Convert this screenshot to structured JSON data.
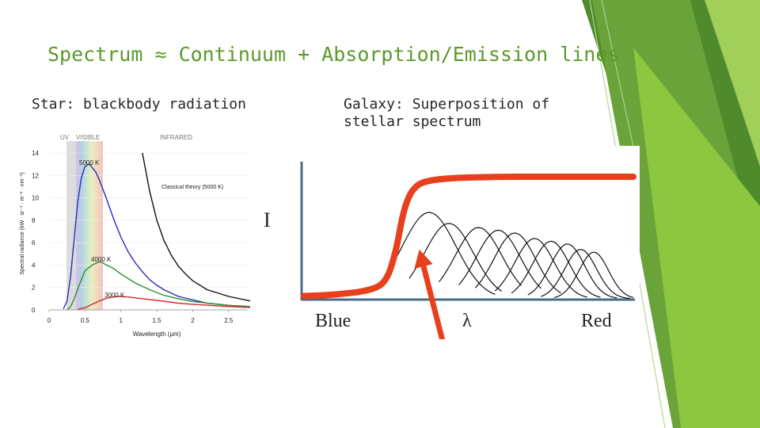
{
  "slide": {
    "title": "Spectrum ≈ Continuum + Absorption/Emission lines",
    "left_subtitle": "Star: blackbody radiation",
    "right_subtitle": "Galaxy: Superposition of stellar spectrum",
    "accent_color": "#5b9a2a",
    "decor_colors": [
      "#8dc63f",
      "#6aa33a",
      "#4f8a2b"
    ]
  },
  "chart_data": [
    {
      "type": "line",
      "title": "",
      "xlabel": "Wavelength (μm)",
      "ylabel": "Spectral radiance (kW · sr⁻¹ · m⁻² · nm⁻¹)",
      "xlim": [
        0,
        2.8
      ],
      "ylim": [
        0,
        14
      ],
      "xticks": [
        0,
        0.5,
        1,
        1.5,
        2,
        2.5
      ],
      "xtick_labels": [
        "0",
        "0.5",
        "1",
        "1.5",
        "2",
        "2.5"
      ],
      "yticks": [
        0,
        2,
        4,
        6,
        8,
        10,
        12,
        14
      ],
      "band_labels": {
        "uv": "UV",
        "visible": "VISIBLE",
        "infrared": "INFRARED"
      },
      "visible_band": [
        0.38,
        0.75
      ],
      "series": [
        {
          "name": "5000 K",
          "color": "#2b2bb8",
          "x": [
            0.2,
            0.25,
            0.3,
            0.35,
            0.4,
            0.45,
            0.5,
            0.55,
            0.58,
            0.6,
            0.65,
            0.7,
            0.8,
            0.9,
            1.0,
            1.1,
            1.2,
            1.3,
            1.4,
            1.5,
            1.6,
            1.8,
            2.0,
            2.2,
            2.5,
            2.8
          ],
          "y": [
            0.1,
            0.8,
            3.0,
            6.4,
            9.7,
            11.8,
            12.8,
            13.0,
            12.9,
            12.7,
            12.3,
            11.6,
            9.9,
            8.1,
            6.5,
            5.2,
            4.2,
            3.4,
            2.7,
            2.2,
            1.8,
            1.2,
            0.9,
            0.6,
            0.4,
            0.3
          ]
        },
        {
          "name": "4000 K",
          "color": "#2a8f2a",
          "x": [
            0.25,
            0.3,
            0.35,
            0.4,
            0.5,
            0.6,
            0.7,
            0.72,
            0.8,
            0.9,
            1.0,
            1.2,
            1.4,
            1.6,
            1.8,
            2.0,
            2.5,
            2.8
          ],
          "y": [
            0.0,
            0.3,
            1.0,
            1.9,
            3.5,
            4.0,
            4.3,
            4.3,
            4.0,
            3.7,
            3.2,
            2.4,
            1.8,
            1.3,
            1.0,
            0.75,
            0.4,
            0.3
          ]
        },
        {
          "name": "3000 K",
          "color": "#d42a2a",
          "x": [
            0.4,
            0.5,
            0.6,
            0.7,
            0.8,
            0.9,
            0.97,
            1.1,
            1.3,
            1.5,
            1.8,
            2.0,
            2.5,
            2.8
          ],
          "y": [
            0.05,
            0.2,
            0.5,
            0.8,
            1.05,
            1.15,
            1.2,
            1.15,
            1.0,
            0.85,
            0.6,
            0.5,
            0.3,
            0.22
          ]
        },
        {
          "name": "Classical theory (5000 K)",
          "color": "#111111",
          "x": [
            1.3,
            1.4,
            1.5,
            1.6,
            1.7,
            1.8,
            1.9,
            2.0,
            2.2,
            2.5,
            2.8
          ],
          "y": [
            14.0,
            10.6,
            8.0,
            6.2,
            4.9,
            3.9,
            3.2,
            2.6,
            1.8,
            1.2,
            0.8
          ]
        }
      ],
      "annotations": [
        "5000 K",
        "Classical theory (5000 K)",
        "4000 K",
        "3000 K"
      ]
    },
    {
      "type": "line",
      "title": "",
      "xlabel": "λ",
      "ylabel": "I",
      "x_left_label": "Blue",
      "x_right_label": "Red",
      "xlim": [
        0,
        1
      ],
      "ylim": [
        0,
        1
      ],
      "total": {
        "color": "#e8401c",
        "x": [
          0.0,
          0.1,
          0.2,
          0.25,
          0.28,
          0.3,
          0.32,
          0.34,
          0.36,
          0.4,
          0.45,
          0.5,
          0.6,
          0.7,
          0.8,
          0.9,
          1.0
        ],
        "y": [
          0.02,
          0.03,
          0.06,
          0.12,
          0.35,
          0.62,
          0.76,
          0.82,
          0.85,
          0.87,
          0.88,
          0.885,
          0.89,
          0.89,
          0.89,
          0.89,
          0.89
        ]
      },
      "component_color": "#111111",
      "components": [
        {
          "center": 0.38,
          "width": 0.11,
          "height": 0.63,
          "start": 0.25,
          "end": 0.58
        },
        {
          "center": 0.44,
          "width": 0.1,
          "height": 0.55,
          "start": 0.32,
          "end": 0.6
        },
        {
          "center": 0.53,
          "width": 0.095,
          "height": 0.52,
          "start": 0.41,
          "end": 0.66
        },
        {
          "center": 0.59,
          "width": 0.09,
          "height": 0.5,
          "start": 0.47,
          "end": 0.72
        },
        {
          "center": 0.64,
          "width": 0.085,
          "height": 0.48,
          "start": 0.52,
          "end": 0.78
        },
        {
          "center": 0.7,
          "width": 0.08,
          "height": 0.44,
          "start": 0.58,
          "end": 0.86
        },
        {
          "center": 0.75,
          "width": 0.075,
          "height": 0.42,
          "start": 0.63,
          "end": 0.9
        },
        {
          "center": 0.8,
          "width": 0.07,
          "height": 0.4,
          "start": 0.68,
          "end": 0.95
        },
        {
          "center": 0.84,
          "width": 0.065,
          "height": 0.36,
          "start": 0.72,
          "end": 0.99
        },
        {
          "center": 0.88,
          "width": 0.06,
          "height": 0.34,
          "start": 0.76,
          "end": 1.0
        }
      ],
      "arrow": {
        "color": "#e8401c",
        "from": [
          0.42,
          -0.3
        ],
        "to": [
          0.35,
          0.36
        ]
      }
    }
  ]
}
